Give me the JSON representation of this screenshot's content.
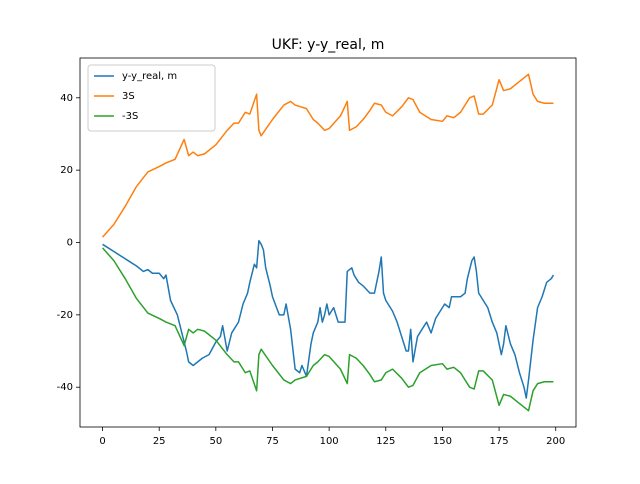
{
  "chart_data": {
    "type": "line",
    "title": "UKF: y-y_real, m",
    "xlim": [
      -9.95,
      208.95
    ],
    "xticks": [
      0,
      25,
      50,
      75,
      100,
      125,
      150,
      175,
      200
    ],
    "ylim": [
      -51,
      51
    ],
    "yticks": [
      -40,
      -20,
      0,
      20,
      40
    ],
    "legend": "upper left",
    "series": [
      {
        "name": "y-y_real, m",
        "color": "#1f77b4",
        "x": [
          0,
          5,
          10,
          15,
          18,
          20,
          22,
          25,
          27,
          28,
          30,
          33,
          35,
          37,
          38,
          40,
          42,
          44,
          47,
          50,
          52,
          53,
          55,
          57,
          60,
          62,
          64,
          65,
          67,
          68,
          69,
          70,
          71,
          72,
          74,
          75,
          78,
          80,
          81,
          83,
          85,
          87,
          88,
          90,
          92,
          93,
          95,
          96,
          97,
          98,
          99,
          100,
          102,
          104,
          106,
          107,
          108,
          110,
          111,
          113,
          115,
          118,
          120,
          122,
          123,
          124,
          125,
          128,
          130,
          132,
          134,
          135,
          136,
          137,
          139,
          141,
          143,
          145,
          147,
          149,
          151,
          153,
          154,
          156,
          158,
          160,
          161,
          163,
          164,
          165,
          166,
          168,
          170,
          172,
          174,
          176,
          177,
          178,
          180,
          182,
          184,
          186,
          187,
          188,
          190,
          192,
          194,
          196,
          198,
          199
        ],
        "values": [
          -0.5,
          -2.5,
          -4.5,
          -6.5,
          -8,
          -7.5,
          -8.5,
          -8.5,
          -10,
          -9,
          -16,
          -20,
          -25,
          -30,
          -33,
          -34,
          -33,
          -32,
          -31,
          -27.5,
          -26,
          -23,
          -30,
          -25,
          -22,
          -17,
          -14,
          -11,
          -6,
          -7,
          0.5,
          -0.5,
          -2,
          -7,
          -12,
          -15,
          -20,
          -20,
          -17,
          -24,
          -35,
          -36,
          -34,
          -37,
          -28,
          -25,
          -22,
          -18,
          -22,
          -20,
          -17,
          -20,
          -18,
          -22,
          -22,
          -22,
          -8,
          -7,
          -9,
          -11,
          -12,
          -14,
          -14,
          -8,
          -4,
          -14,
          -16,
          -19,
          -22,
          -26,
          -30,
          -30,
          -24,
          -33,
          -26,
          -24,
          -22,
          -25,
          -21,
          -19,
          -17,
          -18,
          -15,
          -15,
          -15,
          -14,
          -10,
          -5,
          -4,
          -8,
          -14,
          -16,
          -18,
          -22,
          -25,
          -31,
          -28,
          -23,
          -28,
          -31,
          -36,
          -40,
          -43,
          -38,
          -27,
          -18,
          -15,
          -11,
          -10,
          -9
        ]
      },
      {
        "name": "3S",
        "color": "#ff7f0e",
        "x": [
          0,
          5,
          10,
          15,
          20,
          25,
          28,
          32,
          36,
          38,
          40,
          42,
          45,
          50,
          55,
          58,
          60,
          63,
          65,
          68,
          69,
          70,
          75,
          80,
          83,
          85,
          90,
          93,
          95,
          98,
          100,
          105,
          108,
          109,
          112,
          115,
          118,
          120,
          123,
          125,
          128,
          132,
          135,
          137,
          140,
          145,
          150,
          152,
          155,
          158,
          162,
          164,
          166,
          168,
          172,
          175,
          177,
          180,
          185,
          188,
          190,
          192,
          195,
          199
        ],
        "values": [
          1.5,
          5,
          10,
          15.5,
          19.5,
          21,
          22,
          23,
          28.5,
          24,
          25,
          24,
          24.5,
          27,
          31,
          33,
          33,
          36,
          35.5,
          41,
          31,
          29.5,
          34,
          38,
          39,
          38,
          37,
          34,
          33,
          31,
          31.5,
          35,
          39,
          31,
          32,
          34,
          36.5,
          38.5,
          38,
          36,
          35,
          37.5,
          40,
          39.5,
          36,
          34,
          33.5,
          35,
          34.5,
          36,
          40,
          40.5,
          35.5,
          35.5,
          38,
          45,
          42,
          42.5,
          45,
          46.5,
          41,
          39,
          38.5,
          38.5
        ]
      },
      {
        "name": "-3S",
        "color": "#2ca02c",
        "x": [
          0,
          5,
          10,
          15,
          20,
          25,
          28,
          32,
          36,
          38,
          40,
          42,
          45,
          50,
          55,
          58,
          60,
          63,
          65,
          68,
          69,
          70,
          75,
          80,
          83,
          85,
          90,
          93,
          95,
          98,
          100,
          105,
          108,
          109,
          112,
          115,
          118,
          120,
          123,
          125,
          128,
          132,
          135,
          137,
          140,
          145,
          150,
          152,
          155,
          158,
          162,
          164,
          166,
          168,
          172,
          175,
          177,
          180,
          185,
          188,
          190,
          192,
          195,
          199
        ],
        "values": [
          -1.5,
          -5,
          -10,
          -15.5,
          -19.5,
          -21,
          -22,
          -23,
          -28.5,
          -24,
          -25,
          -24,
          -24.5,
          -27,
          -31,
          -33,
          -33,
          -36,
          -35.5,
          -41,
          -31,
          -29.5,
          -34,
          -38,
          -39,
          -38,
          -37,
          -34,
          -33,
          -31,
          -31.5,
          -35,
          -39,
          -31,
          -32,
          -34,
          -36.5,
          -38.5,
          -38,
          -36,
          -35,
          -37.5,
          -40,
          -39.5,
          -36,
          -34,
          -33.5,
          -35,
          -34.5,
          -36,
          -40,
          -40.5,
          -35.5,
          -35.5,
          -38,
          -45,
          -42,
          -42.5,
          -45,
          -46.5,
          -41,
          -39,
          -38.5,
          -38.5
        ]
      }
    ]
  }
}
